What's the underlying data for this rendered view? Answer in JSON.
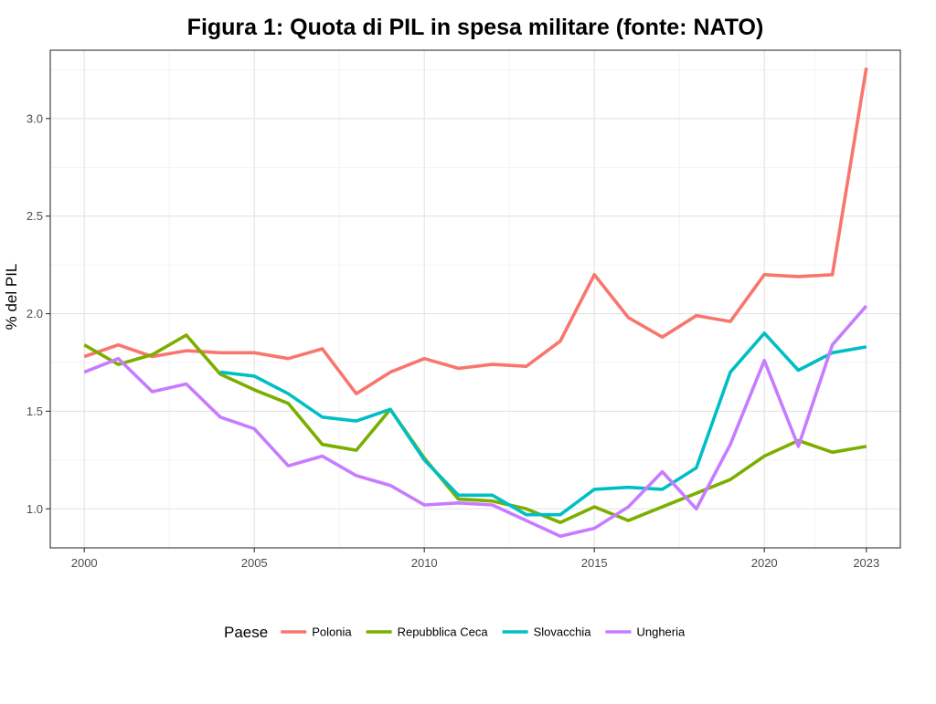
{
  "chart_data": {
    "type": "line",
    "title": "Figura 1: Quota di PIL in spesa militare (fonte: NATO)",
    "xlabel": "",
    "ylabel": "% del PIL",
    "xlim": [
      1999,
      2024
    ],
    "ylim": [
      0.8,
      3.35
    ],
    "x_ticks": [
      2000,
      2005,
      2010,
      2015,
      2020,
      2023
    ],
    "y_ticks": [
      1.0,
      1.5,
      2.0,
      2.5,
      3.0
    ],
    "y_tick_labels": [
      "1.0",
      "1.5",
      "2.0",
      "2.5",
      "3.0"
    ],
    "grid": true,
    "legend": {
      "title": "Paese",
      "position": "bottom"
    },
    "series": [
      {
        "name": "Polonia",
        "color": "#F8766D",
        "x": [
          2000,
          2001,
          2002,
          2003,
          2004,
          2005,
          2006,
          2007,
          2008,
          2009,
          2010,
          2011,
          2012,
          2013,
          2014,
          2015,
          2016,
          2017,
          2018,
          2019,
          2020,
          2021,
          2022,
          2023
        ],
        "values": [
          1.78,
          1.84,
          1.78,
          1.81,
          1.8,
          1.8,
          1.77,
          1.82,
          1.59,
          1.7,
          1.77,
          1.72,
          1.74,
          1.73,
          1.86,
          2.2,
          1.98,
          1.88,
          1.99,
          1.96,
          2.2,
          2.19,
          2.2,
          3.26
        ]
      },
      {
        "name": "Repubblica Ceca",
        "color": "#7CAE00",
        "x": [
          2000,
          2001,
          2002,
          2003,
          2004,
          2005,
          2006,
          2007,
          2008,
          2009,
          2010,
          2011,
          2012,
          2013,
          2014,
          2015,
          2016,
          2017,
          2018,
          2019,
          2020,
          2021,
          2022,
          2023
        ],
        "values": [
          1.84,
          1.74,
          1.79,
          1.89,
          1.69,
          1.61,
          1.54,
          1.33,
          1.3,
          1.51,
          1.26,
          1.05,
          1.04,
          1.0,
          0.93,
          1.01,
          0.94,
          1.01,
          1.08,
          1.15,
          1.27,
          1.35,
          1.29,
          1.32
        ]
      },
      {
        "name": "Slovacchia",
        "color": "#00BFC4",
        "x": [
          2004,
          2005,
          2006,
          2007,
          2008,
          2009,
          2010,
          2011,
          2012,
          2013,
          2014,
          2015,
          2016,
          2017,
          2018,
          2019,
          2020,
          2021,
          2022,
          2023
        ],
        "values": [
          1.7,
          1.68,
          1.59,
          1.47,
          1.45,
          1.51,
          1.25,
          1.07,
          1.07,
          0.97,
          0.97,
          1.1,
          1.11,
          1.1,
          1.21,
          1.7,
          1.9,
          1.71,
          1.8,
          1.83
        ]
      },
      {
        "name": "Ungheria",
        "color": "#C77CFF",
        "x": [
          2000,
          2001,
          2002,
          2003,
          2004,
          2005,
          2006,
          2007,
          2008,
          2009,
          2010,
          2011,
          2012,
          2013,
          2014,
          2015,
          2016,
          2017,
          2018,
          2019,
          2020,
          2021,
          2022,
          2023
        ],
        "values": [
          1.7,
          1.77,
          1.6,
          1.64,
          1.47,
          1.41,
          1.22,
          1.27,
          1.17,
          1.12,
          1.02,
          1.03,
          1.02,
          0.94,
          0.86,
          0.9,
          1.01,
          1.19,
          1.0,
          1.33,
          1.76,
          1.32,
          1.84,
          2.04
        ]
      }
    ]
  }
}
